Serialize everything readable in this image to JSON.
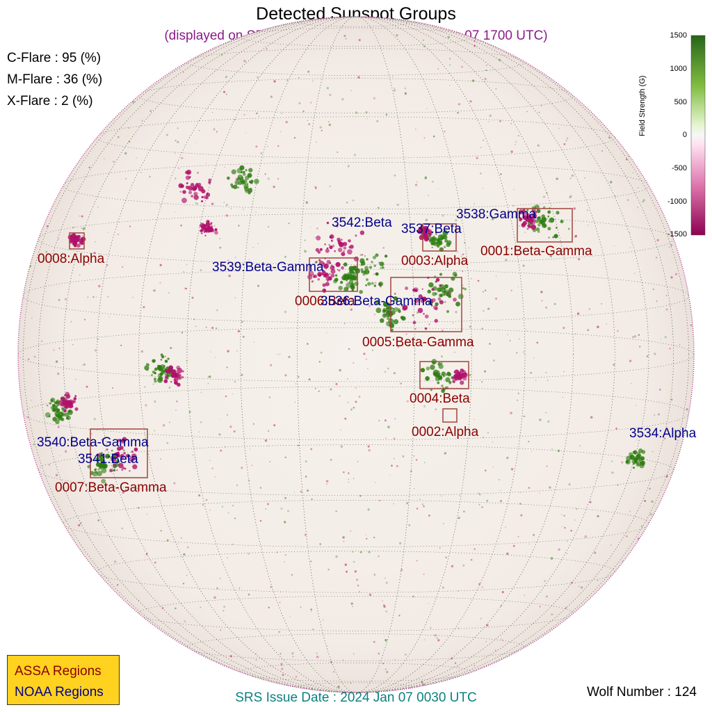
{
  "header": {
    "title": "Detected Sunspot Groups",
    "subtitle": "(displayed on SDO HMI Magnetogram at 2024 Jan 07 1700 UTC)"
  },
  "flare_probabilities": [
    {
      "label": "C-Flare : 95 (%)"
    },
    {
      "label": "M-Flare : 36 (%)"
    },
    {
      "label": "X-Flare :  2 (%)"
    }
  ],
  "colorbar": {
    "label": "Field Strength (G)",
    "ticks": [
      "1500",
      "1000",
      "500",
      "0",
      "-500",
      "-1000",
      "-1500"
    ],
    "positive_color": "#2e7d12",
    "negative_color": "#b0106a"
  },
  "assa_regions": [
    {
      "label": "0001:Beta-Gamma"
    },
    {
      "label": "0002:Alpha"
    },
    {
      "label": "0003:Alpha"
    },
    {
      "label": "0004:Beta"
    },
    {
      "label": "0005:Beta-Gamma"
    },
    {
      "label": "0006:Beta"
    },
    {
      "label": "0007:Beta-Gamma"
    },
    {
      "label": "0008:Alpha"
    }
  ],
  "noaa_regions": [
    {
      "label": "3534:Alpha"
    },
    {
      "label": "3536:Beta-Gamma"
    },
    {
      "label": "3537:Beta"
    },
    {
      "label": "3538:Gamma"
    },
    {
      "label": "3539:Beta-Gamma"
    },
    {
      "label": "3540:Beta-Gamma"
    },
    {
      "label": "3541:Beta"
    },
    {
      "label": "3542:Beta"
    }
  ],
  "legend": {
    "assa": "ASSA Regions",
    "noaa": "NOAA Regions",
    "assa_color": "#8b0000",
    "noaa_color": "#00008b"
  },
  "footer": {
    "srs": "SRS Issue Date : 2024 Jan 07 0030 UTC",
    "wolf": "Wolf Number : 124"
  }
}
